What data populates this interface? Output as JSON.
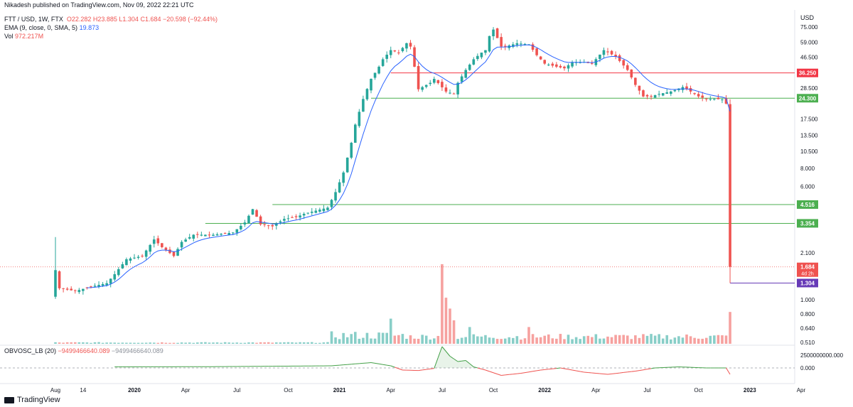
{
  "header": {
    "published": "Nikadesh published on TradingView.com, Nov 09, 2022 22:21 UTC",
    "symbol": "FTT / USD, 1W, FTX",
    "ohlc": "O22.282  H23.885  L1.304  C1.684  −20.598 (−92.44%)",
    "ema_label": "EMA (9, close, 0, SMA, 5)",
    "ema_value": "19.873",
    "vol_label": "Vol",
    "vol_value": "972.217M"
  },
  "indicator": {
    "label": "OBVOSC_LB (20)",
    "value1": "−9499466640.089",
    "value2": "−9499466640.089"
  },
  "footer": {
    "brand": "TradingView"
  },
  "colors": {
    "up": "#26a69a",
    "down": "#ef5350",
    "ema": "#2962ff",
    "green_level": "#4caf50",
    "red_level": "#f23645",
    "purple": "#673ab7"
  },
  "chart_data": {
    "type": "candlestick",
    "currency": "USD",
    "y_scale": "log",
    "price_axis_ticks": [
      "75.000",
      "59.000",
      "46.500",
      "36.250",
      "28.500",
      "24.300",
      "17.500",
      "13.500",
      "10.500",
      "8.000",
      "6.000",
      "4.516",
      "3.354",
      "2.100",
      "1.684",
      "1.304",
      "1.000",
      "0.800",
      "0.640",
      "0.510"
    ],
    "price_axis_tick_values": [
      75,
      59,
      46.5,
      36.25,
      28.5,
      24.3,
      17.5,
      13.5,
      10.5,
      8,
      6,
      4.516,
      3.354,
      2.1,
      1.684,
      1.304,
      1.0,
      0.8,
      0.64,
      0.51
    ],
    "time_axis_labels": [
      "Aug",
      "14",
      "2020",
      "Apr",
      "Jul",
      "Oct",
      "2021",
      "Apr",
      "Jul",
      "Oct",
      "2022",
      "Apr",
      "Jul",
      "Oct",
      "2023",
      "Apr"
    ],
    "time_axis_label_weeks": [
      0,
      7,
      20,
      33,
      46,
      59,
      72,
      85,
      98,
      111,
      124,
      137,
      150,
      163,
      176,
      189
    ],
    "indicator_axis_ticks": [
      "2500000000.000",
      "0.000"
    ],
    "horizontal_levels": [
      {
        "price": 36.25,
        "label": "36.250",
        "color": "red"
      },
      {
        "price": 24.3,
        "label": "24.300",
        "color": "green"
      },
      {
        "price": 4.516,
        "label": "4.516",
        "color": "green"
      },
      {
        "price": 3.354,
        "label": "3.354",
        "color": "green"
      },
      {
        "price": 1.304,
        "label": "1.304",
        "color": "purple"
      }
    ],
    "last_price": {
      "price": 1.684,
      "label": "1.684",
      "countdown": "4d 2h"
    },
    "price_waypoints": [
      [
        0,
        1.6
      ],
      [
        1,
        1.2
      ],
      [
        5,
        1.15
      ],
      [
        10,
        1.25
      ],
      [
        13,
        1.3
      ],
      [
        15,
        1.5
      ],
      [
        18,
        1.9
      ],
      [
        22,
        2.0
      ],
      [
        25,
        2.6
      ],
      [
        27,
        2.3
      ],
      [
        30,
        2.0
      ],
      [
        32,
        2.5
      ],
      [
        35,
        2.8
      ],
      [
        40,
        2.8
      ],
      [
        45,
        2.9
      ],
      [
        48,
        3.4
      ],
      [
        50,
        4.2
      ],
      [
        52,
        3.3
      ],
      [
        55,
        3.2
      ],
      [
        58,
        3.6
      ],
      [
        61,
        3.7
      ],
      [
        63,
        3.9
      ],
      [
        66,
        4.1
      ],
      [
        69,
        4.3
      ],
      [
        71,
        5.5
      ],
      [
        73,
        7.5
      ],
      [
        75,
        12
      ],
      [
        76,
        16
      ],
      [
        78,
        24
      ],
      [
        80,
        33
      ],
      [
        82,
        40
      ],
      [
        83,
        45
      ],
      [
        85,
        52
      ],
      [
        87,
        50
      ],
      [
        89,
        58
      ],
      [
        90,
        55
      ],
      [
        91,
        40
      ],
      [
        92,
        28
      ],
      [
        95,
        31
      ],
      [
        96,
        33
      ],
      [
        99,
        27
      ],
      [
        101,
        26
      ],
      [
        102,
        31
      ],
      [
        104,
        38
      ],
      [
        106,
        45
      ],
      [
        108,
        50
      ],
      [
        109,
        52
      ],
      [
        110,
        65
      ],
      [
        111,
        72
      ],
      [
        113,
        55
      ],
      [
        114,
        55
      ],
      [
        117,
        58
      ],
      [
        120,
        57
      ],
      [
        122,
        48
      ],
      [
        124,
        42
      ],
      [
        127,
        40
      ],
      [
        129,
        39
      ],
      [
        131,
        43
      ],
      [
        134,
        43
      ],
      [
        136,
        42
      ],
      [
        139,
        52
      ],
      [
        142,
        47
      ],
      [
        145,
        38
      ],
      [
        147,
        30
      ],
      [
        149,
        25
      ],
      [
        151,
        25
      ],
      [
        153,
        26
      ],
      [
        156,
        27
      ],
      [
        159,
        29
      ],
      [
        161,
        27
      ],
      [
        163,
        25
      ],
      [
        165,
        24
      ],
      [
        167,
        24
      ],
      [
        169,
        23.8
      ],
      [
        170,
        22.3
      ],
      [
        171,
        1.684
      ]
    ],
    "volume_spikes": [
      [
        98,
        0.95
      ],
      [
        99,
        0.55
      ],
      [
        100,
        0.42
      ],
      [
        101,
        0.28
      ],
      [
        85,
        0.3
      ],
      [
        105,
        0.2
      ],
      [
        120,
        0.2
      ],
      [
        171,
        0.38
      ]
    ],
    "obv_waypoints": [
      [
        15,
        0.05
      ],
      [
        40,
        0.06
      ],
      [
        70,
        0.1
      ],
      [
        80,
        0.25
      ],
      [
        85,
        0.1
      ],
      [
        88,
        -0.1
      ],
      [
        92,
        -0.12
      ],
      [
        96,
        -0.02
      ],
      [
        98,
        1.0
      ],
      [
        100,
        0.55
      ],
      [
        102,
        0.3
      ],
      [
        104,
        0.35
      ],
      [
        106,
        0.05
      ],
      [
        109,
        -0.1
      ],
      [
        113,
        -0.35
      ],
      [
        118,
        -0.25
      ],
      [
        123,
        -0.1
      ],
      [
        128,
        0.0
      ],
      [
        134,
        -0.2
      ],
      [
        140,
        -0.3
      ],
      [
        147,
        -0.15
      ],
      [
        152,
        0.0
      ],
      [
        158,
        0.05
      ],
      [
        165,
        0.0
      ],
      [
        170,
        0.0
      ],
      [
        171,
        -0.3
      ]
    ]
  }
}
